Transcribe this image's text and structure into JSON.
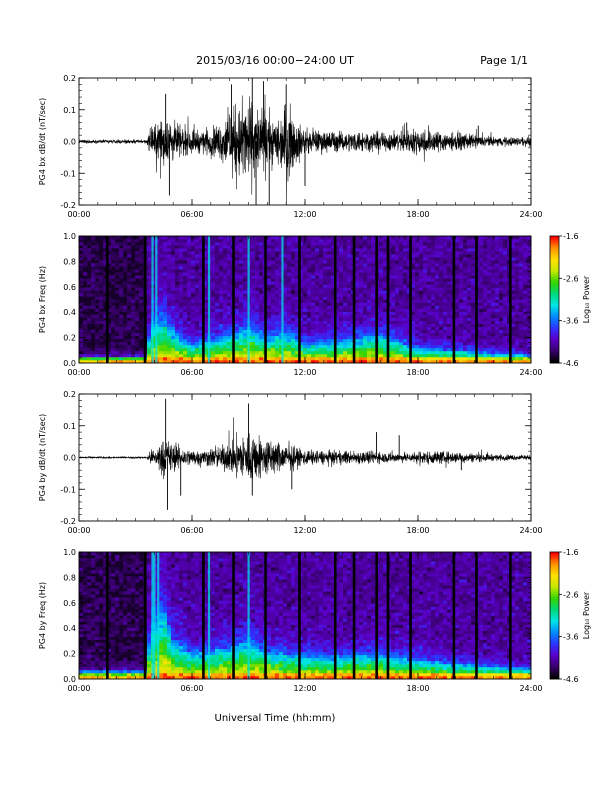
{
  "header": {
    "title": "2015/03/16  00:00−24:00 UT",
    "page": "Page 1/1"
  },
  "xlabel": "Universal Time (hh:mm)",
  "colorbar": {
    "label": "Log₁₀ Power",
    "ticks": [
      "-1.6",
      "-2.6",
      "-3.6",
      "-4.6"
    ],
    "colormap": [
      "#000000",
      "#3a006f",
      "#5a00c8",
      "#2c35ff",
      "#008cff",
      "#00e5e5",
      "#00d97a",
      "#33d400",
      "#c5e800",
      "#ffe100",
      "#ff9400",
      "#ff0000"
    ]
  },
  "chart_data": [
    {
      "type": "line",
      "ylabel": "PG4 bx dB/dt (nT/sec)",
      "x_unit": "hours UT",
      "xlim": [
        0,
        24
      ],
      "ylim": [
        -0.2,
        0.2
      ],
      "xticks": [
        "00:00",
        "06:00",
        "12:00",
        "18:00",
        "24:00"
      ],
      "yticks": [
        "0.2",
        "0.1",
        "0.0",
        "-0.1",
        "-0.2"
      ],
      "envelope": {
        "x": [
          0,
          3.6,
          3.8,
          4.5,
          5.0,
          5.5,
          6.5,
          7.5,
          8.0,
          9.0,
          9.5,
          10.5,
          11.0,
          11.5,
          12.0,
          13.5,
          14.0,
          15.0,
          16.0,
          17.5,
          18.0,
          19.0,
          20.0,
          21.0,
          22.0,
          23.0,
          24.0
        ],
        "amp": [
          0.008,
          0.008,
          0.06,
          0.11,
          0.09,
          0.06,
          0.05,
          0.08,
          0.14,
          0.2,
          0.15,
          0.1,
          0.18,
          0.1,
          0.05,
          0.05,
          0.04,
          0.05,
          0.04,
          0.05,
          0.06,
          0.05,
          0.04,
          0.03,
          0.02,
          0.02,
          0.02
        ]
      },
      "bursts": [
        {
          "x": 4.6,
          "y": 0.15
        },
        {
          "x": 4.8,
          "y": -0.17
        },
        {
          "x": 8.1,
          "y": 0.18
        },
        {
          "x": 9.2,
          "y": 0.2
        },
        {
          "x": 9.4,
          "y": -0.2
        },
        {
          "x": 9.8,
          "y": 0.19
        },
        {
          "x": 10.1,
          "y": -0.2
        },
        {
          "x": 11.0,
          "y": 0.18
        },
        {
          "x": 12.0,
          "y": -0.14
        },
        {
          "x": 17.4,
          "y": 0.06
        },
        {
          "x": 21.2,
          "y": 0.05
        }
      ]
    },
    {
      "type": "heatmap",
      "ylabel": "PG4 bx Freq (Hz)",
      "x_unit": "hours UT",
      "xlim": [
        0,
        24
      ],
      "ylim": [
        0,
        1.0
      ],
      "zlim": [
        -4.6,
        -1.6
      ],
      "z_label": "Log₁₀ Power",
      "xticks": [
        "00:00",
        "06:00",
        "12:00",
        "18:00",
        "24:00"
      ],
      "yticks": [
        "1.0",
        "0.8",
        "0.6",
        "0.4",
        "0.2",
        "0.0"
      ],
      "band_top_freq": {
        "x": [
          0,
          3.6,
          3.8,
          4.5,
          5.0,
          6.0,
          7.0,
          8.0,
          9.0,
          10.0,
          11.0,
          12.0,
          14.0,
          16.0,
          18.0,
          20.0,
          22.0,
          24.0
        ],
        "f": [
          0.05,
          0.05,
          0.3,
          0.35,
          0.25,
          0.15,
          0.18,
          0.22,
          0.28,
          0.2,
          0.25,
          0.15,
          0.18,
          0.22,
          0.12,
          0.1,
          0.08,
          0.06
        ]
      },
      "data_gaps_hours": [
        1.5,
        3.5,
        6.6,
        8.2,
        9.9,
        11.7,
        13.6,
        14.6,
        15.8,
        16.4,
        17.6,
        19.9,
        21.1,
        22.9
      ],
      "broadband_lines_hours": [
        3.9,
        4.1,
        6.9,
        9.0,
        10.8
      ]
    },
    {
      "type": "line",
      "ylabel": "PG4 by dB/dt (nT/sec)",
      "x_unit": "hours UT",
      "xlim": [
        0,
        24
      ],
      "ylim": [
        -0.2,
        0.2
      ],
      "xticks": [
        "00:00",
        "06:00",
        "12:00",
        "18:00",
        "24:00"
      ],
      "yticks": [
        "0.2",
        "0.1",
        "0.0",
        "-0.1",
        "-0.2"
      ],
      "envelope": {
        "x": [
          0,
          3.6,
          3.8,
          4.5,
          5.0,
          5.5,
          6.5,
          7.5,
          8.0,
          9.0,
          9.5,
          10.5,
          11.0,
          12.0,
          13.5,
          15.0,
          16.0,
          17.5,
          18.0,
          19.0,
          20.0,
          22.0,
          24.0
        ],
        "amp": [
          0.004,
          0.004,
          0.03,
          0.08,
          0.07,
          0.04,
          0.035,
          0.05,
          0.07,
          0.12,
          0.1,
          0.07,
          0.06,
          0.035,
          0.03,
          0.03,
          0.025,
          0.02,
          0.03,
          0.03,
          0.025,
          0.015,
          0.01
        ]
      },
      "bursts": [
        {
          "x": 4.6,
          "y": 0.185
        },
        {
          "x": 4.7,
          "y": -0.165
        },
        {
          "x": 5.4,
          "y": -0.12
        },
        {
          "x": 9.0,
          "y": 0.17
        },
        {
          "x": 9.2,
          "y": -0.12
        },
        {
          "x": 11.3,
          "y": -0.1
        },
        {
          "x": 15.8,
          "y": 0.08
        },
        {
          "x": 17.0,
          "y": 0.07
        },
        {
          "x": 20.3,
          "y": -0.04
        }
      ]
    },
    {
      "type": "heatmap",
      "ylabel": "PG4 by Freq (Hz)",
      "x_unit": "hours UT",
      "xlim": [
        0,
        24
      ],
      "ylim": [
        0,
        1.0
      ],
      "zlim": [
        -4.6,
        -1.6
      ],
      "z_label": "Log₁₀ Power",
      "xticks": [
        "00:00",
        "06:00",
        "12:00",
        "18:00",
        "24:00"
      ],
      "yticks": [
        "1.0",
        "0.8",
        "0.6",
        "0.4",
        "0.2",
        "0.0"
      ],
      "band_top_freq": {
        "x": [
          0,
          3.6,
          3.8,
          4.5,
          5.0,
          6.0,
          7.0,
          8.0,
          9.0,
          10.0,
          11.0,
          12.0,
          14.0,
          16.0,
          18.0,
          20.0,
          22.0,
          24.0
        ],
        "f": [
          0.06,
          0.06,
          0.4,
          0.55,
          0.3,
          0.2,
          0.22,
          0.25,
          0.3,
          0.22,
          0.2,
          0.18,
          0.18,
          0.2,
          0.15,
          0.12,
          0.1,
          0.08
        ]
      },
      "data_gaps_hours": [
        1.5,
        3.5,
        6.6,
        8.2,
        9.9,
        11.7,
        13.6,
        14.6,
        15.8,
        16.4,
        17.6,
        19.9,
        21.1,
        22.9
      ],
      "broadband_lines_hours": [
        3.9,
        4.0,
        4.2,
        6.9,
        9.0
      ]
    }
  ]
}
